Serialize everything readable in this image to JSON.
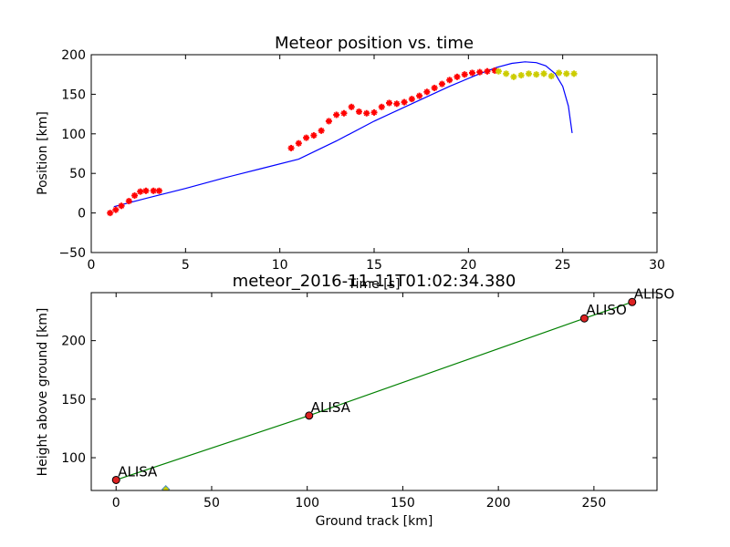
{
  "chart_data": [
    {
      "type": "line",
      "title": "Meteor position vs. time",
      "xlabel": "Time [s]",
      "ylabel": "Position [km]",
      "xlim": [
        0,
        30
      ],
      "ylim": [
        -50,
        200
      ],
      "x_ticks": [
        0,
        5,
        10,
        15,
        20,
        25,
        30
      ],
      "y_ticks": [
        -50,
        0,
        50,
        100,
        150,
        200
      ],
      "grid": false,
      "series": [
        {
          "style": "line",
          "color": "#0000ff",
          "x": [
            1.2,
            3,
            5,
            7,
            9,
            11,
            13,
            15,
            17,
            19,
            20.5,
            21.5,
            22.3,
            23.0,
            23.6,
            24.1,
            24.6,
            25.0,
            25.3,
            25.5
          ],
          "y": [
            8,
            19,
            31,
            44,
            56,
            68,
            91,
            116,
            138,
            160,
            175,
            184,
            189,
            191,
            190,
            186,
            176,
            160,
            135,
            101
          ]
        },
        {
          "style": "markers",
          "color": "#ff0000",
          "x": [
            1.0,
            1.3,
            1.6,
            2.0,
            2.3,
            2.6,
            2.9,
            3.3,
            3.6,
            10.6,
            11.0,
            11.4,
            11.8,
            12.2,
            12.6,
            13.0,
            13.4,
            13.8,
            14.2,
            14.6,
            15.0,
            15.4,
            15.8,
            16.2,
            16.6,
            17.0,
            17.4,
            17.8,
            18.2,
            18.6,
            19.0,
            19.4,
            19.8,
            20.2,
            20.6,
            21.0,
            21.4
          ],
          "y": [
            0,
            4,
            9,
            15,
            22,
            27,
            28,
            28,
            28,
            82,
            88,
            95,
            98,
            104,
            116,
            124,
            126,
            134,
            128,
            126,
            127,
            134,
            139,
            138,
            140,
            144,
            148,
            153,
            158,
            163,
            168,
            172,
            175,
            177,
            178,
            179,
            180
          ]
        },
        {
          "style": "markers",
          "color": "#cccc00",
          "x": [
            21.6,
            22.0,
            22.4,
            22.8,
            23.2,
            23.6,
            24.0,
            24.4,
            24.8,
            25.2,
            25.6
          ],
          "y": [
            179,
            176,
            172,
            174,
            176,
            175,
            176,
            173,
            177,
            176,
            176
          ]
        }
      ]
    },
    {
      "type": "line",
      "title": "meteor_2016-11-11T01:02:34.380",
      "xlabel": "Ground track [km]",
      "ylabel": "Height above ground [km]",
      "xlim": [
        -13,
        283
      ],
      "ylim": [
        72,
        241
      ],
      "x_ticks": [
        0,
        50,
        100,
        150,
        200,
        250
      ],
      "y_ticks": [
        100,
        150,
        200
      ],
      "grid": false,
      "series": [
        {
          "style": "line",
          "color": "#008000",
          "x": [
            0,
            101,
            245,
            270
          ],
          "y": [
            81,
            136,
            219,
            233
          ]
        }
      ],
      "stations": [
        {
          "x": 0,
          "y": 81,
          "label": "ALISA"
        },
        {
          "x": 101,
          "y": 136,
          "label": "ALISA"
        },
        {
          "x": 245,
          "y": 219,
          "label": "ALISO"
        },
        {
          "x": 270,
          "y": 233,
          "label": "ALISO"
        }
      ],
      "extra_marker": {
        "x": 26,
        "y": 73,
        "color": "#cccc00"
      }
    }
  ]
}
